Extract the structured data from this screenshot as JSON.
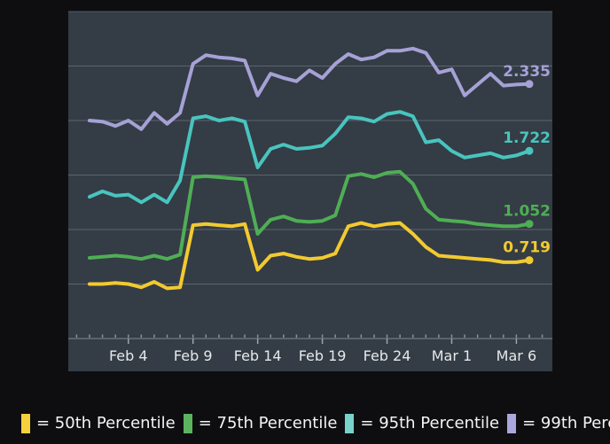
{
  "chart_data": {
    "type": "line",
    "title": "",
    "xlabel": "",
    "ylabel": "",
    "x": [
      "Feb 1",
      "Feb 2",
      "Feb 3",
      "Feb 4",
      "Feb 5",
      "Feb 6",
      "Feb 7",
      "Feb 8",
      "Feb 9",
      "Feb 10",
      "Feb 11",
      "Feb 12",
      "Feb 13",
      "Feb 14",
      "Feb 15",
      "Feb 16",
      "Feb 17",
      "Feb 18",
      "Feb 19",
      "Feb 20",
      "Feb 21",
      "Feb 22",
      "Feb 23",
      "Feb 24",
      "Feb 25",
      "Feb 26",
      "Feb 27",
      "Feb 28",
      "Mar 1",
      "Mar 2",
      "Mar 3",
      "Mar 4",
      "Mar 5",
      "Mar 6",
      "Mar 7"
    ],
    "x_tick_labels": [
      "Feb 4",
      "Feb 9",
      "Feb 14",
      "Feb 19",
      "Feb 24",
      "Mar 1",
      "Mar 6"
    ],
    "x_tick_label_indices": [
      3,
      8,
      13,
      18,
      23,
      28,
      33
    ],
    "ylim": [
      0,
      3
    ],
    "y_grid_step": 0.5,
    "grid": true,
    "legend_position": "bottom",
    "series": [
      {
        "name": "50th Percentile",
        "color": "#f2ca30",
        "end_label": "0.719",
        "values": [
          0.5,
          0.5,
          0.51,
          0.5,
          0.47,
          0.52,
          0.46,
          0.47,
          1.04,
          1.05,
          1.04,
          1.03,
          1.05,
          0.63,
          0.76,
          0.78,
          0.75,
          0.73,
          0.74,
          0.78,
          1.03,
          1.06,
          1.03,
          1.05,
          1.06,
          0.96,
          0.84,
          0.76,
          0.75,
          0.74,
          0.73,
          0.72,
          0.7,
          0.7,
          0.719
        ]
      },
      {
        "name": "75th Percentile",
        "color": "#4fae55",
        "end_label": "1.052",
        "values": [
          0.74,
          0.75,
          0.76,
          0.75,
          0.73,
          0.76,
          0.73,
          0.77,
          1.48,
          1.49,
          1.48,
          1.47,
          1.46,
          0.96,
          1.09,
          1.12,
          1.08,
          1.07,
          1.08,
          1.13,
          1.49,
          1.51,
          1.48,
          1.52,
          1.53,
          1.42,
          1.19,
          1.09,
          1.08,
          1.07,
          1.05,
          1.04,
          1.03,
          1.03,
          1.052
        ]
      },
      {
        "name": "95th Percentile",
        "color": "#49c4be",
        "end_label": "1.722",
        "values": [
          1.3,
          1.35,
          1.31,
          1.32,
          1.25,
          1.32,
          1.25,
          1.45,
          2.02,
          2.04,
          2.0,
          2.02,
          1.99,
          1.57,
          1.74,
          1.78,
          1.74,
          1.75,
          1.77,
          1.88,
          2.03,
          2.02,
          1.99,
          2.06,
          2.08,
          2.04,
          1.8,
          1.82,
          1.72,
          1.66,
          1.68,
          1.7,
          1.66,
          1.68,
          1.722
        ]
      },
      {
        "name": "99th Percentile",
        "color": "#a6a1d6",
        "end_label": "2.335",
        "values": [
          2.0,
          1.99,
          1.95,
          2.0,
          1.92,
          2.07,
          1.97,
          2.07,
          2.52,
          2.6,
          2.58,
          2.57,
          2.55,
          2.23,
          2.43,
          2.39,
          2.36,
          2.46,
          2.39,
          2.52,
          2.61,
          2.56,
          2.58,
          2.64,
          2.64,
          2.66,
          2.62,
          2.44,
          2.47,
          2.23,
          2.33,
          2.43,
          2.32,
          2.33,
          2.335
        ]
      }
    ]
  },
  "legend": {
    "items": [
      {
        "id": "50th-percentile",
        "label": "= 50th Percentile",
        "color": "#f6d13c"
      },
      {
        "id": "75th-percentile",
        "label": "= 75th Percentile",
        "color": "#5bb55e"
      },
      {
        "id": "95th-percentile",
        "label": "= 95th Percentile",
        "color": "#79d2ca"
      },
      {
        "id": "99th-percentile",
        "label": "= 99th Percentile",
        "color": "#aba7dc"
      }
    ]
  },
  "colors": {
    "page_bg": "#0e0e10",
    "panel_bg": "#343c45",
    "gridline": "#8f98a0",
    "axis_line": "#9aa3ab",
    "tick": "#aeb6bc",
    "tick_label_text": "#e6e9eb",
    "legend_text": "#f3f4f5"
  }
}
